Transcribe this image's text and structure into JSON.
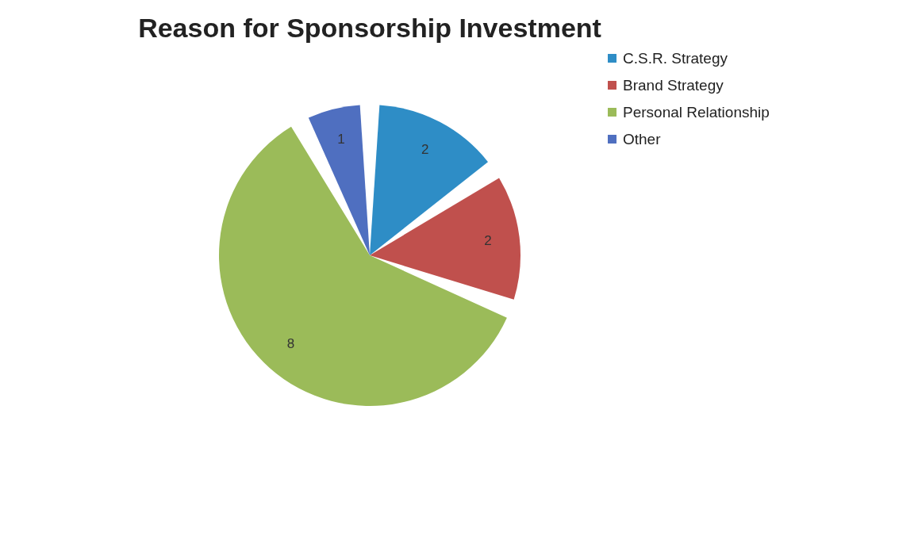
{
  "chart_data": {
    "type": "pie",
    "title": "Reason for Sponsorship Investment",
    "categories": [
      "C.S.R. Strategy",
      "Brand Strategy",
      "Personal Relationship",
      "Other"
    ],
    "values": [
      2,
      2,
      8,
      1
    ],
    "colors": [
      "#2e8dc6",
      "#c0504d",
      "#9bbb59",
      "#4f6fc0"
    ],
    "data_labels": true,
    "legend": "right"
  }
}
